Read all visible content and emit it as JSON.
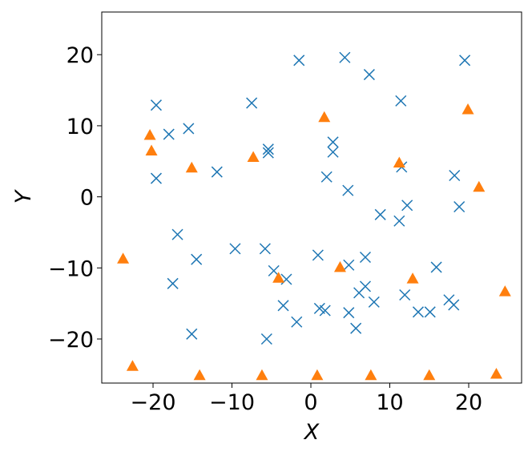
{
  "chart_data": {
    "type": "scatter",
    "xlabel": "X",
    "ylabel": "Y",
    "xlim": [
      -26.5,
      26.7
    ],
    "ylim": [
      -26.2,
      26.0
    ],
    "xticks": [
      {
        "value": -20,
        "label": "−20"
      },
      {
        "value": -10,
        "label": "−10"
      },
      0,
      10,
      20
    ],
    "yticks": [
      {
        "value": -20,
        "label": "−20"
      },
      {
        "value": -10,
        "label": "−10"
      },
      0,
      10,
      20
    ],
    "series": [
      {
        "color": "#1f77b4",
        "marker": "x",
        "x": [
          -19.6,
          -18.0,
          -15.5,
          -19.6,
          -11.9,
          -7.5,
          -1.5,
          4.3,
          7.4,
          19.5,
          11.4,
          -5.4,
          -5.4,
          2.8,
          2.8,
          2.0,
          4.7,
          11.5,
          18.2,
          12.2,
          18.8,
          8.8,
          11.2,
          -16.9,
          -14.5,
          -17.5,
          -9.6,
          -5.8,
          -4.7,
          -3.1,
          -3.5,
          -1.8,
          -5.6,
          -15.1,
          0.9,
          1.1,
          1.8,
          4.8,
          4.8,
          5.7,
          6.1,
          6.9,
          6.9,
          8.0,
          11.9,
          13.6,
          15.1,
          15.9,
          17.5,
          18.1
        ],
        "y": [
          12.9,
          8.8,
          9.6,
          2.6,
          3.5,
          13.2,
          19.2,
          19.6,
          17.2,
          19.2,
          13.5,
          6.7,
          6.2,
          7.7,
          6.3,
          2.8,
          0.9,
          4.2,
          3.0,
          -1.2,
          -1.4,
          -2.5,
          -3.4,
          -5.3,
          -8.8,
          -12.2,
          -7.3,
          -7.3,
          -10.4,
          -11.6,
          -15.3,
          -17.6,
          -20.0,
          -19.3,
          -8.2,
          -15.7,
          -16.0,
          -9.6,
          -16.3,
          -18.5,
          -13.5,
          -8.5,
          -12.6,
          -14.8,
          -13.8,
          -16.2,
          -16.2,
          -9.9,
          -14.5,
          -15.2
        ]
      },
      {
        "color": "#ff7f0e",
        "marker": "triangle",
        "x": [
          -20.4,
          -20.2,
          -15.1,
          -7.3,
          1.7,
          19.9,
          11.2,
          21.3,
          -23.8,
          -4.1,
          3.7,
          12.9,
          24.6,
          -22.6,
          -14.1,
          -6.2,
          0.8,
          7.6,
          15.0,
          23.5
        ],
        "y": [
          8.7,
          6.5,
          4.1,
          5.6,
          11.2,
          12.3,
          4.8,
          1.4,
          -8.7,
          -11.4,
          -9.9,
          -11.5,
          -13.3,
          -23.8,
          -25.1,
          -25.1,
          -25.1,
          -25.1,
          -25.1,
          -24.9
        ]
      }
    ]
  }
}
